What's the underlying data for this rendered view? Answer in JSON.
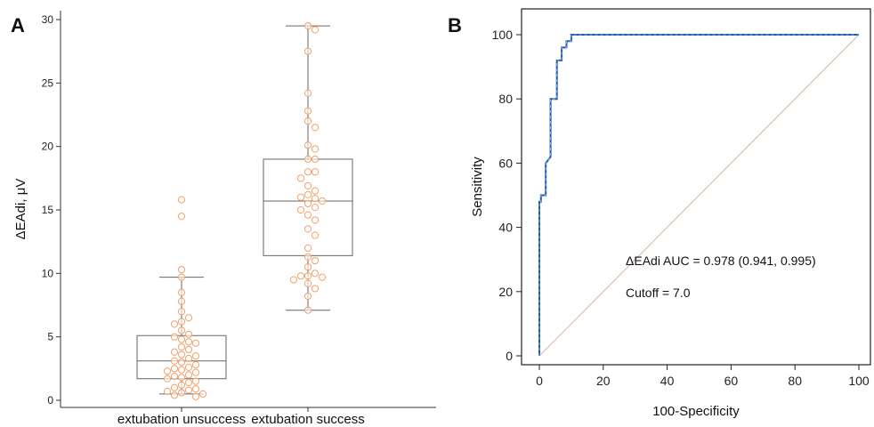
{
  "chart_data": [
    {
      "type": "box",
      "panel_label": "A",
      "ylabel": "ΔEAdi, μV",
      "ylim": [
        0,
        30
      ],
      "yticks": [
        0,
        5,
        10,
        15,
        20,
        25,
        30
      ],
      "categories": [
        "extubation unsuccess",
        "extubation success"
      ],
      "point_color": "#f4a16a",
      "boxes": [
        {
          "category": "extubation unsuccess",
          "min": 0.5,
          "q1": 1.7,
          "median": 3.1,
          "q3": 5.1,
          "max": 9.7
        },
        {
          "category": "extubation success",
          "min": 7.1,
          "q1": 11.4,
          "median": 15.7,
          "q3": 19.0,
          "max": 29.5
        }
      ],
      "points": [
        [
          15.8,
          14.5,
          10.3,
          9.7,
          8.5,
          7.8,
          7.0,
          6.5,
          6.2,
          6.0,
          5.5,
          5.2,
          5.0,
          4.8,
          4.6,
          4.5,
          4.2,
          4.0,
          3.8,
          3.6,
          3.5,
          3.3,
          3.1,
          3.0,
          2.8,
          2.6,
          2.5,
          2.4,
          2.3,
          2.2,
          2.0,
          1.9,
          1.8,
          1.7,
          1.5,
          1.4,
          1.2,
          1.0,
          0.9,
          0.8,
          0.7,
          0.6,
          0.5,
          0.4,
          0.3
        ],
        [
          29.5,
          29.2,
          27.5,
          24.2,
          22.8,
          22.0,
          21.5,
          20.1,
          19.8,
          19.0,
          19.0,
          18.0,
          18.0,
          17.5,
          16.9,
          16.5,
          16.2,
          16.0,
          15.9,
          15.7,
          15.5,
          15.2,
          15.0,
          14.6,
          14.2,
          13.5,
          13.0,
          12.0,
          11.3,
          11.0,
          10.5,
          10.0,
          9.8,
          9.8,
          9.7,
          9.5,
          9.2,
          8.8,
          8.2,
          7.1
        ]
      ]
    },
    {
      "type": "line",
      "panel_label": "B",
      "xlabel": "100-Specificity",
      "ylabel": "Sensitivity",
      "xlim": [
        0,
        100
      ],
      "ylim": [
        0,
        100
      ],
      "xticks": [
        0,
        20,
        40,
        60,
        80,
        100
      ],
      "yticks": [
        0,
        20,
        40,
        60,
        80,
        100
      ],
      "roc_color": "#1f5aa8",
      "reference_color": "#d9b3a5",
      "series": [
        {
          "x": [
            0,
            0,
            0.5,
            0.5,
            2.0,
            2.0,
            3.5,
            3.5,
            5.5,
            5.5,
            7.0,
            7.0,
            8.5,
            8.5,
            10.0,
            10.0,
            100
          ],
          "y": [
            0,
            48,
            48,
            50,
            50,
            60,
            62,
            80,
            80,
            92,
            92,
            96,
            96,
            98,
            98,
            100,
            100
          ]
        },
        {
          "x": [
            0,
            100
          ],
          "y": [
            0,
            100
          ]
        }
      ],
      "annotations": [
        "ΔEAdi AUC = 0.978 (0.941, 0.995)",
        "Cutoff = 7.0"
      ]
    }
  ]
}
